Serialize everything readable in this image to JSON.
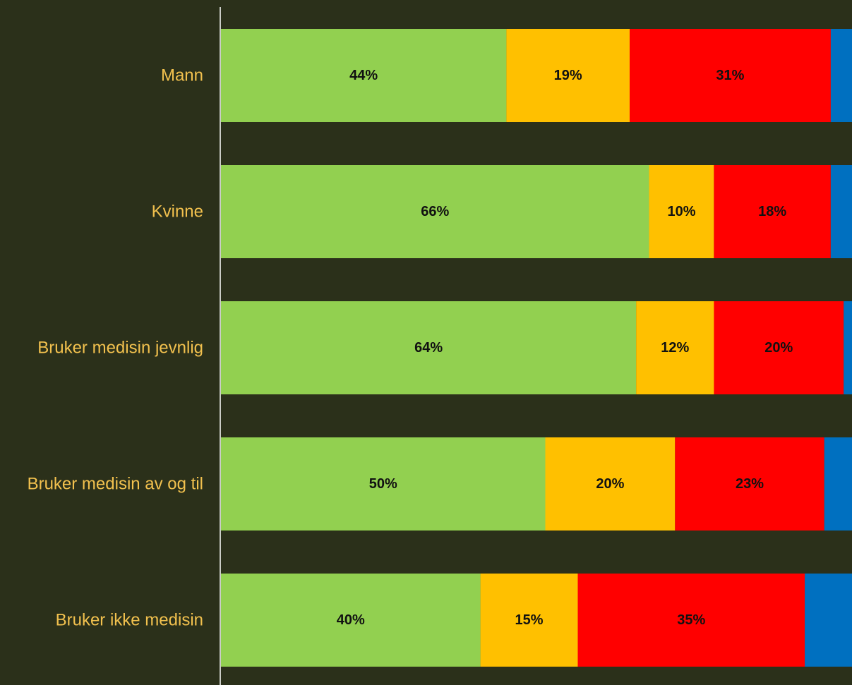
{
  "chart_data": {
    "type": "bar",
    "orientation": "horizontal",
    "stacked": true,
    "categories": [
      "Mann",
      "Kvinne",
      "Bruker medisin jevnlig",
      "Bruker medisin av og til",
      "Bruker ikke medisin"
    ],
    "series": [
      {
        "values": [
          44,
          66,
          64,
          50,
          40
        ],
        "color": "#92d050",
        "labels": [
          "44%",
          "66%",
          "64%",
          "50%",
          "40%"
        ]
      },
      {
        "values": [
          19,
          10,
          12,
          20,
          15
        ],
        "color": "#ffc000",
        "labels": [
          "19%",
          "10%",
          "12%",
          "20%",
          "15%"
        ]
      },
      {
        "values": [
          31,
          18,
          20,
          23,
          35
        ],
        "color": "#ff0000",
        "labels": [
          "31%",
          "18%",
          "20%",
          "23%",
          "35%"
        ]
      },
      {
        "values": [
          6,
          6,
          4,
          7,
          10
        ],
        "color": "#0070c0",
        "labels": [
          "",
          "",
          "",
          "",
          ""
        ]
      }
    ],
    "xlim": [
      0,
      100
    ],
    "grid": false,
    "legend": "none",
    "colors": {
      "background": "#2b301a",
      "category_text": "#f2c14e",
      "value_text": "#111111",
      "axis_line": "#ffffff"
    }
  }
}
